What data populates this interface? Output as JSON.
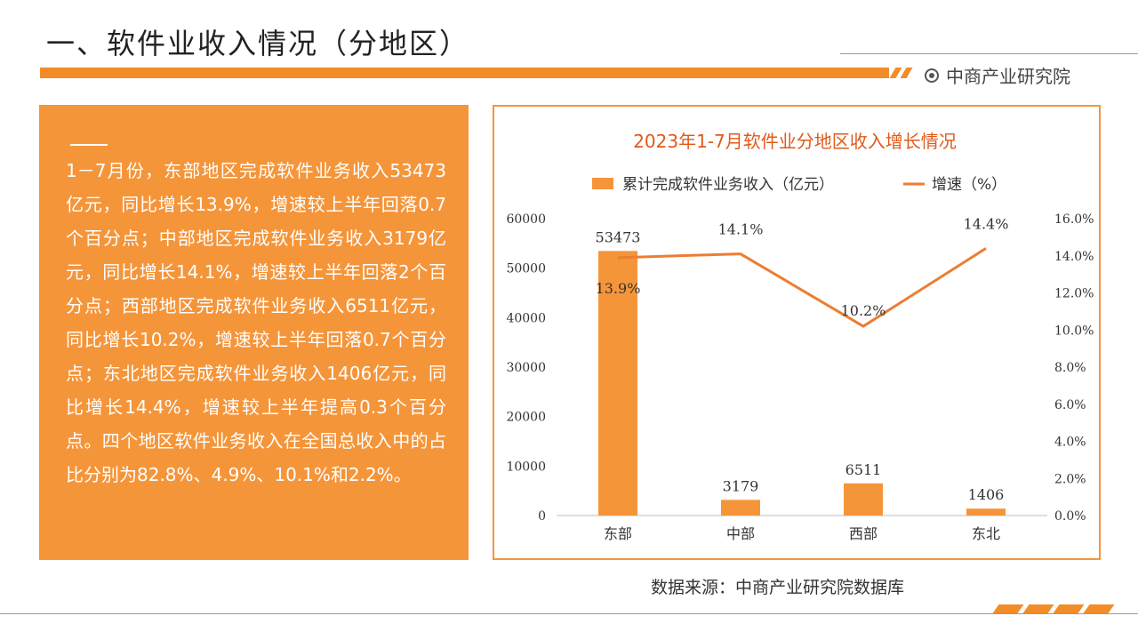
{
  "page": {
    "title": "一、软件业收入情况（分地区）",
    "logo_text": "中商产业研究院",
    "source": "数据来源：中商产业研究院数据库"
  },
  "text_panel": {
    "paragraph": "1－7月份，东部地区完成软件业务收入53473亿元，同比增长13.9%，增速较上半年回落0.7个百分点；中部地区完成软件业务收入3179亿元，同比增长14.1%，增速较上半年回落2个百分点；西部地区完成软件业务收入6511亿元，同比增长10.2%，增速较上半年回落0.7个百分点；东北地区完成软件业务收入1406亿元，同比增长14.4%，增速较上半年提高0.3个百分点。四个地区软件业务收入在全国总收入中的占比分别为82.8%、4.9%、10.1%和2.2%。"
  },
  "colors": {
    "accent": "#F28C28",
    "bar": "#F5953A",
    "line": "#ED7D31",
    "title_text": "#E05A1A"
  },
  "chart_data": {
    "type": "bar",
    "title": "2023年1-7月软件业分地区收入增长情况",
    "categories": [
      "东部",
      "中部",
      "西部",
      "东北"
    ],
    "series": [
      {
        "name": "累计完成软件业务收入（亿元）",
        "type": "bar",
        "axis": "left",
        "values": [
          53473,
          3179,
          6511,
          1406
        ],
        "labels": [
          "53473",
          "3179",
          "6511",
          "1406"
        ]
      },
      {
        "name": "增速（%）",
        "type": "line",
        "axis": "right",
        "values": [
          13.9,
          14.1,
          10.2,
          14.4
        ],
        "labels": [
          "13.9%",
          "14.1%",
          "10.2%",
          "14.4%"
        ]
      }
    ],
    "ylim_left": [
      0,
      60000
    ],
    "yticks_left": [
      "0",
      "10000",
      "20000",
      "30000",
      "40000",
      "50000",
      "60000"
    ],
    "ylim_right": [
      0,
      16
    ],
    "yticks_right": [
      "0.0%",
      "2.0%",
      "4.0%",
      "6.0%",
      "8.0%",
      "10.0%",
      "12.0%",
      "14.0%",
      "16.0%"
    ],
    "legend_position": "top",
    "grid": false
  }
}
